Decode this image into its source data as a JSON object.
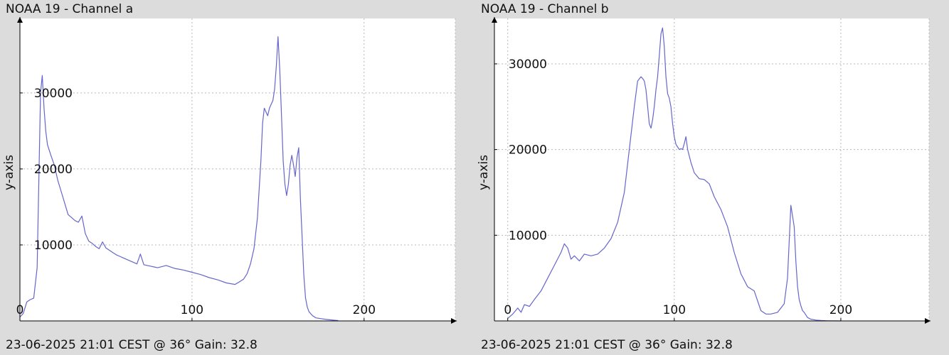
{
  "chart_data": [
    {
      "type": "line",
      "title": "NOAA 19 - Channel a",
      "footer": "23-06-2025 21:01 CEST @ 36° Gain: 32.8",
      "ylabel": "y-axis",
      "xlabel": "",
      "xlim": [
        0,
        253
      ],
      "ylim": [
        0,
        39800
      ],
      "x_ticks": [
        0,
        100,
        200
      ],
      "y_ticks": [
        10000,
        20000,
        30000
      ],
      "x_tick_labels": [
        "0",
        "100",
        "200"
      ],
      "y_tick_labels": [
        "10000",
        "20000",
        "30000"
      ],
      "grid": true,
      "color": "#6666cc",
      "series": [
        {
          "x": [
            0,
            2,
            4,
            6,
            8,
            10,
            12,
            13,
            14,
            15,
            16,
            17,
            18,
            20,
            22,
            24,
            26,
            28,
            30,
            32,
            34,
            36,
            38,
            40,
            42,
            44,
            46,
            48,
            50,
            52,
            54,
            56,
            58,
            60,
            62,
            64,
            66,
            68,
            70,
            72,
            74,
            76,
            78,
            80,
            85,
            90,
            95,
            100,
            105,
            110,
            115,
            120,
            125,
            128,
            130,
            132,
            134,
            136,
            138,
            140,
            141,
            142,
            143,
            144,
            145,
            146,
            147,
            148,
            149,
            150,
            151,
            152,
            153,
            154,
            155,
            156,
            157,
            158,
            159,
            160,
            161,
            162,
            163,
            164,
            165,
            166,
            167,
            168,
            170,
            172,
            175,
            178,
            180,
            182,
            185
          ],
          "y": [
            500,
            1000,
            2500,
            2800,
            3000,
            7000,
            30000,
            32300,
            28000,
            25000,
            23200,
            22500,
            21800,
            20500,
            18500,
            17000,
            15500,
            14000,
            13600,
            13200,
            13000,
            13800,
            11500,
            10500,
            10200,
            9800,
            9500,
            10400,
            9600,
            9300,
            9000,
            8700,
            8500,
            8300,
            8100,
            7900,
            7700,
            7500,
            8800,
            7400,
            7300,
            7200,
            7100,
            7000,
            7300,
            6900,
            6700,
            6400,
            6100,
            5700,
            5400,
            5000,
            4800,
            5200,
            5500,
            6200,
            7500,
            9500,
            13500,
            21000,
            26000,
            28000,
            27500,
            27000,
            28000,
            28500,
            29000,
            30500,
            33500,
            37400,
            33000,
            27000,
            21000,
            18000,
            16500,
            18000,
            20500,
            21800,
            20500,
            19000,
            21500,
            22800,
            16000,
            11000,
            6000,
            3000,
            1800,
            1200,
            700,
            400,
            300,
            200,
            150,
            100,
            50
          ]
        }
      ]
    },
    {
      "type": "line",
      "title": "NOAA 19 - Channel b",
      "footer": "23-06-2025 21:01 CEST @ 36° Gain: 32.8",
      "ylabel": "y-axis",
      "xlabel": "",
      "xlim": [
        -8,
        253
      ],
      "ylim": [
        0,
        35300
      ],
      "x_ticks": [
        0,
        100,
        200
      ],
      "y_ticks": [
        10000,
        20000,
        30000
      ],
      "x_tick_labels": [
        "0",
        "100",
        "200"
      ],
      "y_tick_labels": [
        "10000",
        "20000",
        "30000"
      ],
      "grid": true,
      "color": "#6666cc",
      "series": [
        {
          "x": [
            0,
            3,
            6,
            8,
            10,
            13,
            16,
            20,
            24,
            28,
            32,
            34,
            36,
            38,
            40,
            43,
            46,
            50,
            54,
            58,
            62,
            66,
            70,
            73,
            76,
            78,
            80,
            81,
            82,
            83,
            84,
            85,
            86,
            87,
            88,
            89,
            90,
            91,
            92,
            93,
            94,
            95,
            96,
            97,
            98,
            99,
            100,
            101,
            102,
            103,
            104,
            105,
            106,
            107,
            108,
            110,
            112,
            115,
            118,
            121,
            124,
            128,
            132,
            136,
            140,
            144,
            148,
            152,
            155,
            158,
            162,
            166,
            168,
            170,
            172,
            173,
            174,
            175,
            176,
            177,
            178,
            179,
            180,
            182,
            185,
            188,
            192,
            196,
            200
          ],
          "y": [
            300,
            800,
            1500,
            1000,
            1900,
            1700,
            2500,
            3500,
            5000,
            6500,
            8000,
            9000,
            8500,
            7200,
            7600,
            7000,
            7800,
            7600,
            7800,
            8500,
            9600,
            11500,
            15000,
            20000,
            25000,
            28000,
            28500,
            28300,
            28000,
            27000,
            25000,
            23000,
            22500,
            23500,
            25000,
            27000,
            28500,
            31000,
            33500,
            34200,
            32000,
            28500,
            26500,
            26000,
            25000,
            23000,
            21500,
            20600,
            20300,
            20000,
            20100,
            20000,
            20700,
            21500,
            20000,
            18500,
            17300,
            16600,
            16500,
            16000,
            14500,
            13000,
            11000,
            8000,
            5500,
            4000,
            3500,
            1200,
            800,
            800,
            1000,
            2000,
            5000,
            13500,
            11000,
            7000,
            4000,
            2500,
            1800,
            1200,
            1000,
            700,
            400,
            200,
            100,
            50,
            10,
            5,
            0
          ]
        }
      ]
    }
  ]
}
